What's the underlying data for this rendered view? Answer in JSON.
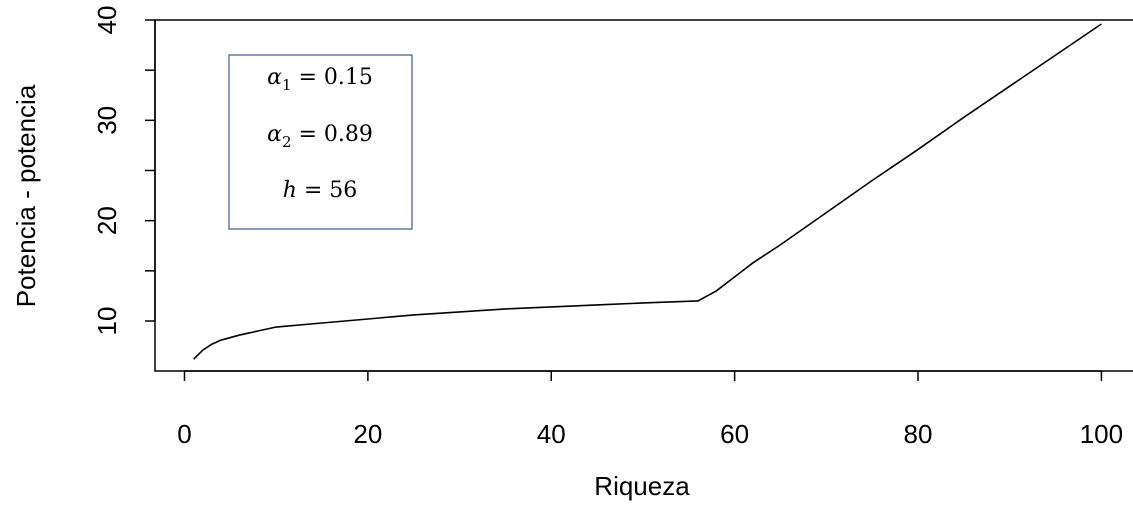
{
  "chart_data": {
    "type": "line",
    "title": "",
    "xlabel": "Riqueza",
    "ylabel": "Potencia - potencia",
    "xlim": [
      0,
      104
    ],
    "ylim": [
      5,
      40
    ],
    "x_ticks": [
      0,
      20,
      40,
      60,
      80,
      100
    ],
    "y_ticks": [
      10,
      20,
      30,
      40
    ],
    "grid": false,
    "legend_position": "top-left",
    "annotations": [
      {
        "var": "α",
        "sub": "1",
        "rest": " = 0.15"
      },
      {
        "var": "α",
        "sub": "2",
        "rest": " = 0.89"
      },
      {
        "var": "h",
        "sub": "",
        "rest": " = 56"
      }
    ],
    "series": [
      {
        "color": "#000000",
        "x": [
          1,
          2,
          3,
          4,
          6,
          8,
          10,
          15,
          20,
          25,
          30,
          35,
          40,
          45,
          50,
          56,
          58,
          60,
          62,
          65,
          70,
          75,
          80,
          85,
          90,
          95,
          100
        ],
        "y": [
          6.2,
          7.1,
          7.7,
          8.1,
          8.6,
          9.0,
          9.4,
          9.8,
          10.2,
          10.6,
          10.9,
          11.2,
          11.4,
          11.6,
          11.8,
          12.0,
          13.0,
          14.4,
          15.8,
          17.6,
          20.8,
          24.0,
          27.1,
          30.3,
          33.4,
          36.5,
          39.6
        ]
      }
    ]
  }
}
